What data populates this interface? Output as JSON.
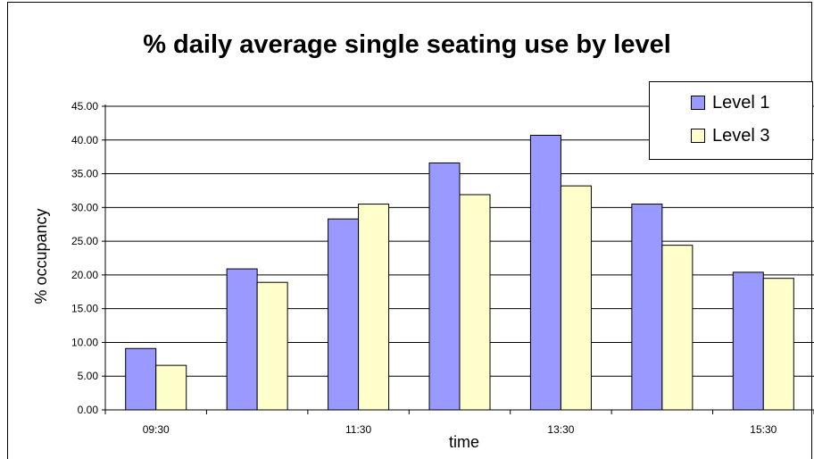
{
  "chart_data": {
    "type": "bar",
    "title": "% daily average single seating use by level",
    "xlabel": "time",
    "ylabel": "% occupancy",
    "ylim": [
      0,
      45
    ],
    "yticks": [
      "0.00",
      "5.00",
      "10.00",
      "15.00",
      "20.00",
      "25.00",
      "30.00",
      "35.00",
      "40.00",
      "45.00"
    ],
    "categories": [
      "09:30",
      "",
      "11:30",
      "",
      "13:30",
      "",
      "15:30"
    ],
    "series": [
      {
        "name": "Level 1",
        "color": "#9999ff",
        "values": [
          9.1,
          20.9,
          28.3,
          36.6,
          40.7,
          30.5,
          20.4
        ]
      },
      {
        "name": "Level 3",
        "color": "#ffffcc",
        "values": [
          6.6,
          18.9,
          30.5,
          31.9,
          33.2,
          24.4,
          19.5
        ]
      }
    ],
    "grid": true,
    "legend_position": "top-right"
  }
}
